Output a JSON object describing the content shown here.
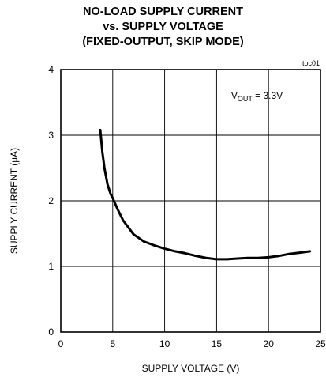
{
  "chart_data": {
    "type": "line",
    "title": [
      "NO-LOAD SUPPLY CURRENT",
      "vs. SUPPLY VOLTAGE",
      "(FIXED-OUTPUT, SKIP MODE)"
    ],
    "tag": "toc01",
    "annotation": {
      "main": "V",
      "sub": "OUT",
      "rest": " = 3.3V"
    },
    "xlabel": "SUPPLY VOLTAGE (V)",
    "ylabel": "SUPPLY CURRENT (µA)",
    "xlim": [
      0,
      25
    ],
    "ylim": [
      0,
      4
    ],
    "xticks": [
      0,
      5,
      10,
      15,
      20,
      25
    ],
    "yticks": [
      0,
      1,
      2,
      3,
      4
    ],
    "grid": true,
    "line_color": "#000000",
    "series": [
      {
        "x": [
          3.8,
          3.9,
          4.0,
          4.2,
          4.5,
          4.8,
          5.0,
          5.5,
          6.0,
          7.0,
          8.0,
          9.0,
          10.0,
          11.0,
          12.0,
          13.0,
          14.0,
          15.0,
          15.5,
          16.0,
          17.0,
          18.0,
          19.0,
          20.0,
          21.0,
          22.0,
          23.0,
          24.0
        ],
        "y": [
          3.08,
          2.92,
          2.75,
          2.5,
          2.25,
          2.1,
          2.04,
          1.86,
          1.7,
          1.49,
          1.38,
          1.32,
          1.27,
          1.23,
          1.2,
          1.16,
          1.13,
          1.11,
          1.11,
          1.11,
          1.12,
          1.13,
          1.13,
          1.14,
          1.16,
          1.19,
          1.21,
          1.23
        ]
      }
    ]
  }
}
